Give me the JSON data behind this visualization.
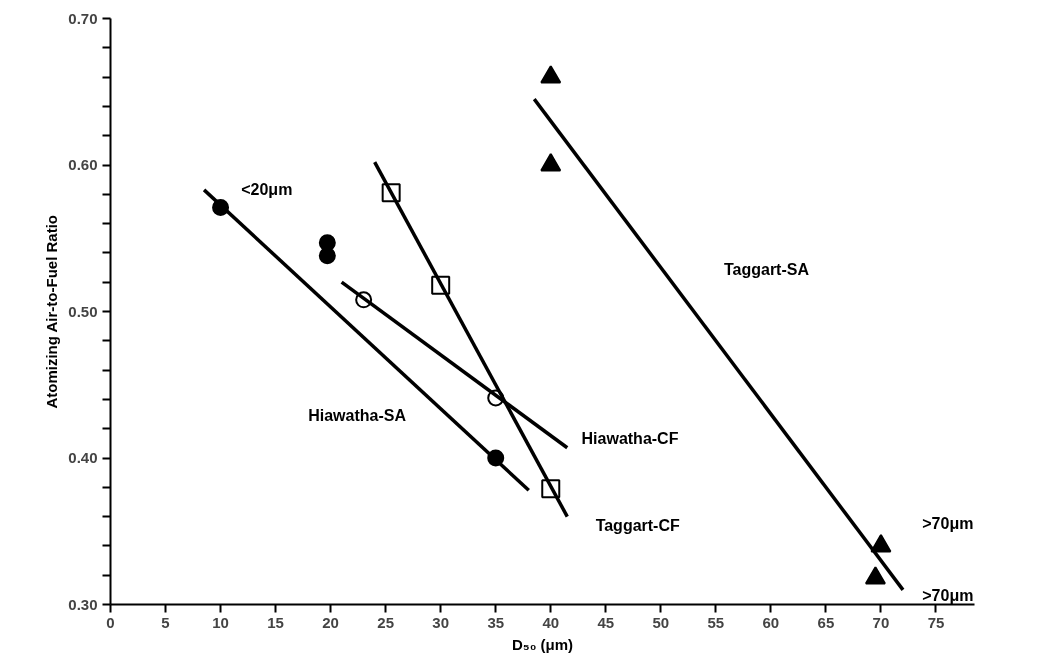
{
  "chart_data": {
    "type": "scatter",
    "xlabel": "D₅₀ (μm)",
    "ylabel": "Atomizing Air-to-Fuel Ratio",
    "xlim": [
      0,
      78.5
    ],
    "ylim": [
      0.3,
      0.7
    ],
    "xticks": [
      0,
      5,
      10,
      15,
      20,
      25,
      30,
      35,
      40,
      45,
      50,
      55,
      60,
      65,
      70,
      75
    ],
    "yticks": [
      {
        "value": 0.3,
        "label": "0.30"
      },
      {
        "value": 0.32,
        "label": null
      },
      {
        "value": 0.34,
        "label": null
      },
      {
        "value": 0.36,
        "label": null
      },
      {
        "value": 0.38,
        "label": null
      },
      {
        "value": 0.4,
        "label": "0.40"
      },
      {
        "value": 0.42,
        "label": null
      },
      {
        "value": 0.44,
        "label": null
      },
      {
        "value": 0.46,
        "label": null
      },
      {
        "value": 0.48,
        "label": null
      },
      {
        "value": 0.5,
        "label": "0.50"
      },
      {
        "value": 0.52,
        "label": null
      },
      {
        "value": 0.54,
        "label": null
      },
      {
        "value": 0.56,
        "label": null
      },
      {
        "value": 0.58,
        "label": null
      },
      {
        "value": 0.6,
        "label": "0.60"
      },
      {
        "value": 0.62,
        "label": null
      },
      {
        "value": 0.64,
        "label": null
      },
      {
        "value": 0.66,
        "label": null
      },
      {
        "value": 0.68,
        "label": null
      },
      {
        "value": 0.7,
        "label": "0.70"
      }
    ],
    "grid": false,
    "series": [
      {
        "marker": "circle",
        "color": "#000000",
        "x": [
          10,
          19.7,
          19.7,
          35
        ],
        "values": [
          0.571,
          0.547,
          0.538,
          0.4
        ]
      },
      {
        "marker": "circle",
        "color": "#ffffff",
        "x": [
          23,
          35
        ],
        "values": [
          0.508,
          0.441
        ]
      },
      {
        "marker": "square",
        "color": "#ffffff",
        "x": [
          25.5,
          30,
          40
        ],
        "values": [
          0.581,
          0.518,
          0.379
        ]
      },
      {
        "marker": "triangle",
        "color": "#000000",
        "x": [
          40,
          40,
          70,
          69.5
        ],
        "values": [
          0.66,
          0.6,
          0.34,
          0.318
        ]
      },
      {
        "type": "line",
        "color": "#000000",
        "x": [
          8.5,
          38
        ],
        "values": [
          0.583,
          0.378
        ]
      },
      {
        "type": "line",
        "color": "#000000",
        "x": [
          21,
          41.5
        ],
        "values": [
          0.52,
          0.407
        ]
      },
      {
        "type": "line",
        "color": "#000000",
        "x": [
          24,
          41.5
        ],
        "values": [
          0.602,
          0.36
        ]
      },
      {
        "type": "line",
        "color": "#000000",
        "x": [
          38.5,
          72
        ],
        "values": [
          0.645,
          0.31
        ]
      }
    ],
    "annotations": [
      "<20μm",
      "Hiawatha-SA",
      "Hiawatha-CF",
      "Taggart-SA",
      "Taggart-CF",
      ">70μm",
      ">70μm"
    ]
  }
}
